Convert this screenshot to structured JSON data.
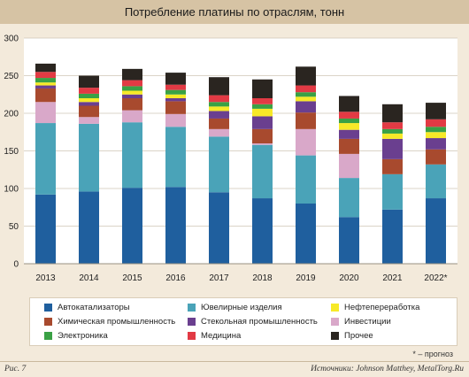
{
  "title": "Потребление платины по отраслям, тонн",
  "note": "* – прогноз",
  "figure_label": "Рис. 7",
  "source": "Источники: Johnson Matthey, MetalTorg.Ru",
  "chart_data": {
    "type": "bar",
    "stacked": true,
    "categories": [
      "2013",
      "2014",
      "2015",
      "2016",
      "2017",
      "2018",
      "2019",
      "2020",
      "2021",
      "2022*"
    ],
    "ylim": [
      0,
      300
    ],
    "yticks": [
      "0",
      "50",
      "100",
      "150",
      "200",
      "250",
      "300"
    ],
    "grid": true,
    "legend_position": "bottom",
    "series": [
      {
        "name": "Автокатализаторы",
        "color": "#1f5f9e",
        "values": [
          92,
          96,
          101,
          102,
          95,
          87,
          80,
          62,
          72,
          87
        ]
      },
      {
        "name": "Ювелирные изделия",
        "color": "#4aa3b8",
        "values": [
          95,
          90,
          87,
          80,
          74,
          71,
          64,
          52,
          47,
          45
        ]
      },
      {
        "name": "Инвестиции",
        "color": "#d9a8c9",
        "values": [
          28,
          9,
          16,
          17,
          10,
          2,
          35,
          32,
          0,
          0
        ]
      },
      {
        "name": "Химическая промышленность",
        "color": "#a84a2e",
        "values": [
          18,
          15,
          16,
          17,
          14,
          19,
          22,
          20,
          20,
          20
        ]
      },
      {
        "name": "Стекольная промышленность",
        "color": "#6a3f8f",
        "values": [
          4,
          5,
          5,
          4,
          10,
          17,
          15,
          12,
          27,
          15
        ]
      },
      {
        "name": "Нефтепереработка",
        "color": "#f7e928",
        "values": [
          4,
          5,
          5,
          5,
          6,
          10,
          6,
          9,
          7,
          8
        ]
      },
      {
        "name": "Электроника",
        "color": "#3aa145",
        "values": [
          6,
          6,
          6,
          6,
          6,
          6,
          6,
          6,
          6,
          7
        ]
      },
      {
        "name": "Медицина",
        "color": "#e23a44",
        "values": [
          8,
          8,
          8,
          7,
          9,
          8,
          9,
          9,
          9,
          10
        ]
      },
      {
        "name": "Прочее",
        "color": "#2a2520",
        "values": [
          11,
          16,
          15,
          16,
          24,
          25,
          25,
          21,
          24,
          22
        ]
      }
    ]
  },
  "legend_layout": [
    [
      "Автокатализаторы",
      "Ювелирные изделия",
      "Нефтепереработка"
    ],
    [
      "Химическая промышленность",
      "Стекольная промышленность",
      "Инвестиции"
    ],
    [
      "Электроника",
      "Медицина",
      "Прочее"
    ]
  ]
}
